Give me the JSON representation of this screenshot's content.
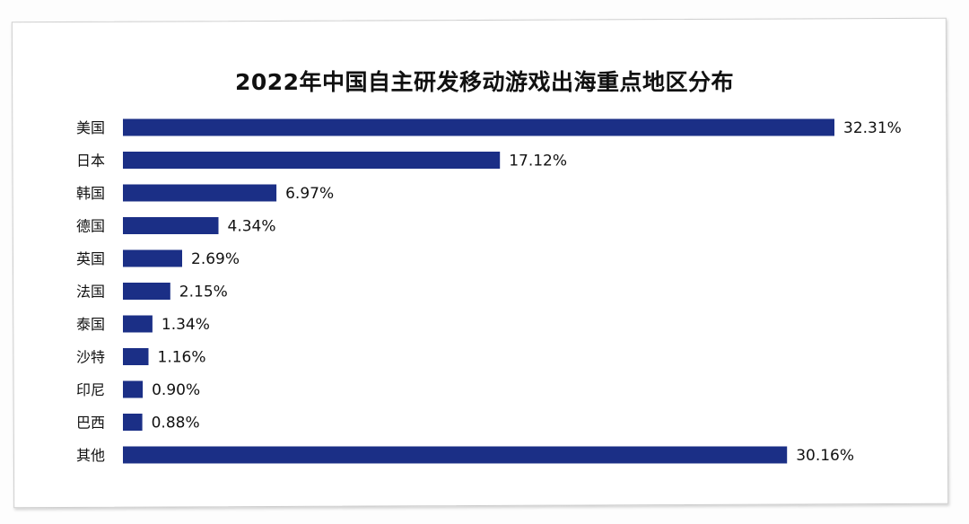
{
  "chart_data": {
    "type": "bar",
    "orientation": "horizontal",
    "title": "2022年中国自主研发移动游戏出海重点地区分布",
    "categories": [
      "美国",
      "日本",
      "韩国",
      "德国",
      "英国",
      "法国",
      "泰国",
      "沙特",
      "印尼",
      "巴西",
      "其他"
    ],
    "values": [
      32.31,
      17.12,
      6.97,
      4.34,
      2.69,
      2.15,
      1.34,
      1.16,
      0.9,
      0.88,
      30.16
    ],
    "value_labels": [
      "32.31%",
      "17.12%",
      "6.97%",
      "4.34%",
      "2.69%",
      "2.15%",
      "1.34%",
      "1.16%",
      "0.90%",
      "0.88%",
      "30.16%"
    ],
    "xlabel": "",
    "ylabel": "",
    "unit": "%",
    "grid": false,
    "legend": "none",
    "bar_color": "#1b2f86"
  }
}
